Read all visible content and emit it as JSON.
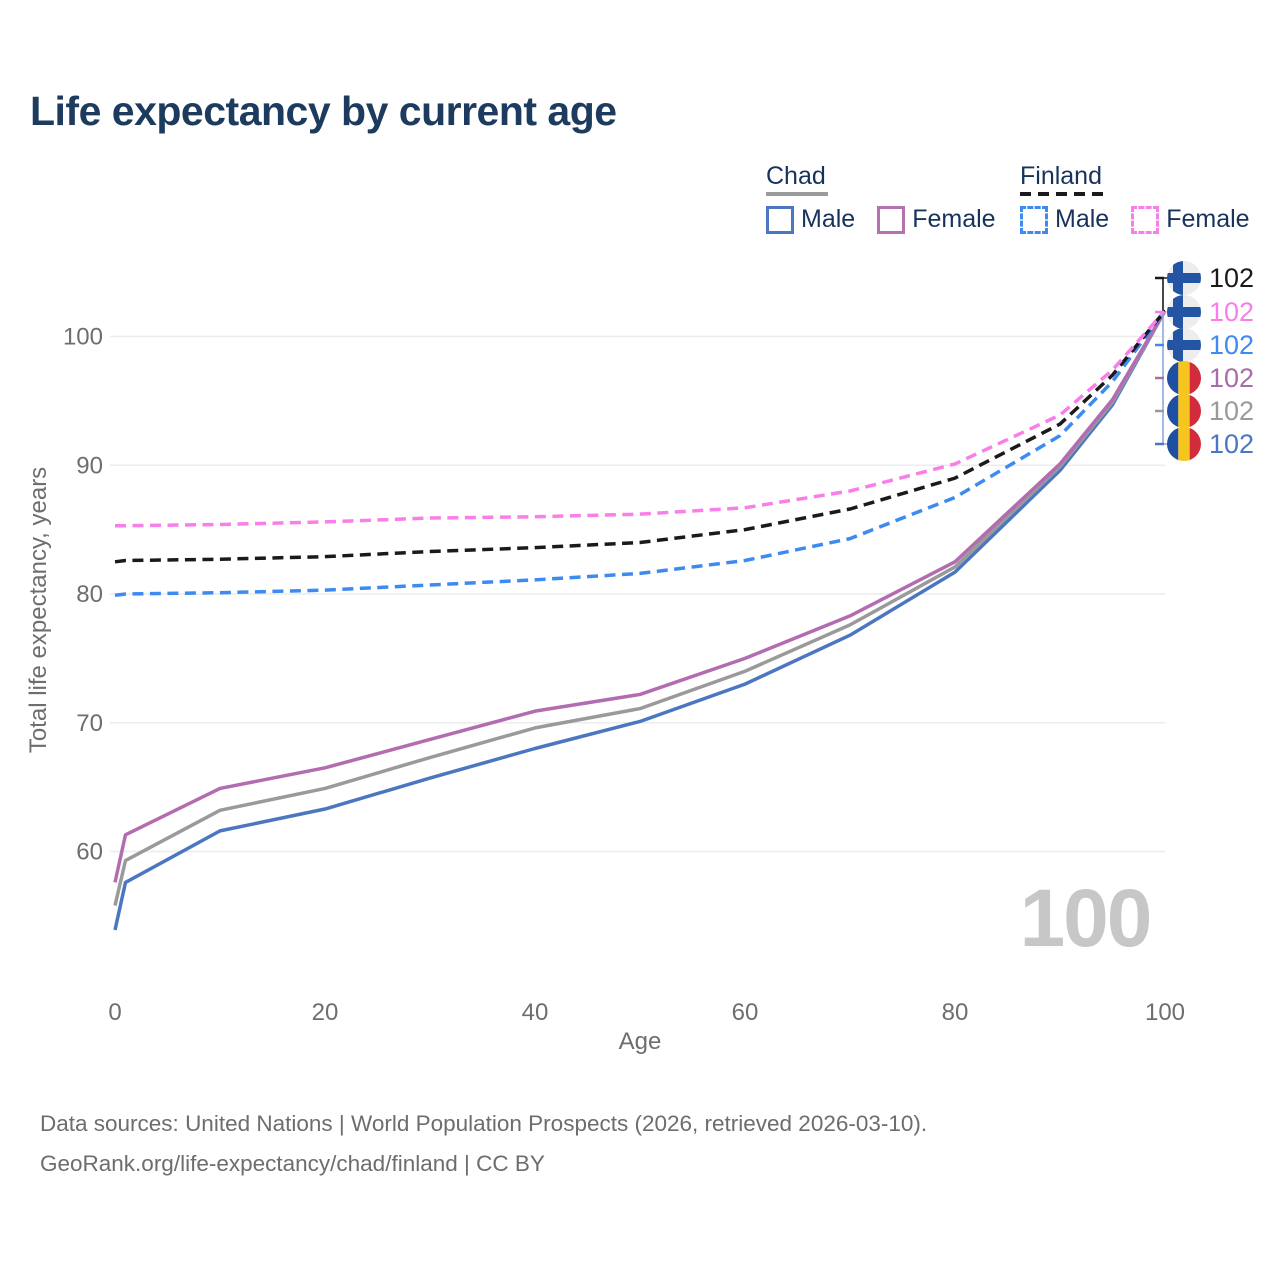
{
  "title": "Life expectancy by current age",
  "legend": {
    "groups": [
      {
        "country": "Chad",
        "line_style": "solid",
        "underline_color": "#9b9b9b",
        "items": [
          {
            "label": "Male",
            "color": "#4b77c0",
            "dashed": false
          },
          {
            "label": "Female",
            "color": "#b573ad",
            "dashed": false
          }
        ]
      },
      {
        "country": "Finland",
        "line_style": "dashed",
        "underline_color": "#1a1a1a",
        "items": [
          {
            "label": "Male",
            "color": "#3d8bf2",
            "dashed": true
          },
          {
            "label": "Female",
            "color": "#f97ee8",
            "dashed": true
          }
        ]
      }
    ]
  },
  "chart_data": {
    "type": "line",
    "title": "Life expectancy by current age",
    "xlabel": "Age",
    "ylabel": "Total life expectancy, years",
    "x_ticks": [
      0,
      20,
      40,
      60,
      80,
      100
    ],
    "y_ticks": [
      60,
      70,
      80,
      90,
      100
    ],
    "xlim": [
      0,
      100
    ],
    "ylim": [
      53,
      104
    ],
    "grid": "horizontal",
    "legend_position": "top-right",
    "x": [
      0,
      1,
      10,
      20,
      30,
      40,
      50,
      60,
      70,
      80,
      90,
      95,
      100
    ],
    "series": [
      {
        "name": "Chad Male",
        "color": "#4b77c0",
        "dashed": false,
        "values": [
          53.9,
          57.6,
          61.6,
          63.3,
          65.7,
          68.0,
          70.1,
          73.0,
          76.8,
          81.7,
          89.6,
          94.7,
          102
        ]
      },
      {
        "name": "Chad",
        "color": "#9a9a9a",
        "dashed": false,
        "values": [
          55.8,
          59.3,
          63.2,
          64.9,
          67.3,
          69.6,
          71.1,
          74.0,
          77.6,
          82.1,
          89.9,
          94.9,
          102
        ]
      },
      {
        "name": "Chad Female",
        "color": "#b36cb0",
        "dashed": false,
        "values": [
          57.6,
          61.3,
          64.9,
          66.5,
          68.7,
          70.9,
          72.2,
          75.0,
          78.3,
          82.5,
          90.1,
          95.1,
          102
        ]
      },
      {
        "name": "Finland Male",
        "color": "#3d8bf2",
        "dashed": true,
        "values": [
          79.9,
          80.0,
          80.1,
          80.3,
          80.7,
          81.1,
          81.6,
          82.6,
          84.3,
          87.5,
          92.3,
          96.5,
          102
        ]
      },
      {
        "name": "Finland",
        "color": "#1a1a1a",
        "dashed": true,
        "values": [
          82.5,
          82.6,
          82.7,
          82.9,
          83.3,
          83.6,
          84.0,
          85.0,
          86.6,
          89.0,
          93.2,
          97.0,
          102
        ]
      },
      {
        "name": "Finland Female",
        "color": "#f97ee8",
        "dashed": true,
        "values": [
          85.3,
          85.3,
          85.4,
          85.6,
          85.9,
          86.0,
          86.2,
          86.7,
          88.0,
          90.1,
          93.9,
          97.4,
          102
        ]
      }
    ],
    "end_labels": [
      {
        "series": "Finland",
        "flag": "fi",
        "value": "102",
        "color": "#1a1a1a"
      },
      {
        "series": "Finland Female",
        "flag": "fi",
        "value": "102",
        "color": "#f97ee8"
      },
      {
        "series": "Finland Male",
        "flag": "fi",
        "value": "102",
        "color": "#3d8bf2"
      },
      {
        "series": "Chad Female",
        "flag": "td",
        "value": "102",
        "color": "#a86ca8"
      },
      {
        "series": "Chad",
        "flag": "td",
        "value": "102",
        "color": "#9a9a9a"
      },
      {
        "series": "Chad Male",
        "flag": "td",
        "value": "102",
        "color": "#4b77c0"
      }
    ],
    "watermark": "100"
  },
  "flags": {
    "finland": {
      "bg": "#ededed",
      "cross": "#2355a4"
    },
    "chad": {
      "blue": "#1e4fa3",
      "yellow": "#f6c51e",
      "red": "#d22b3c"
    }
  },
  "axis_colors": {
    "tick_text": "#6e6e6e",
    "gridline": "#ececec",
    "watermark": "#c7c7c7"
  },
  "footer": {
    "line1": "Data sources: United Nations | World Population Prospects (2026, retrieved 2026-03-10).",
    "line2": "GeoRank.org/life-expectancy/chad/finland | CC BY"
  }
}
